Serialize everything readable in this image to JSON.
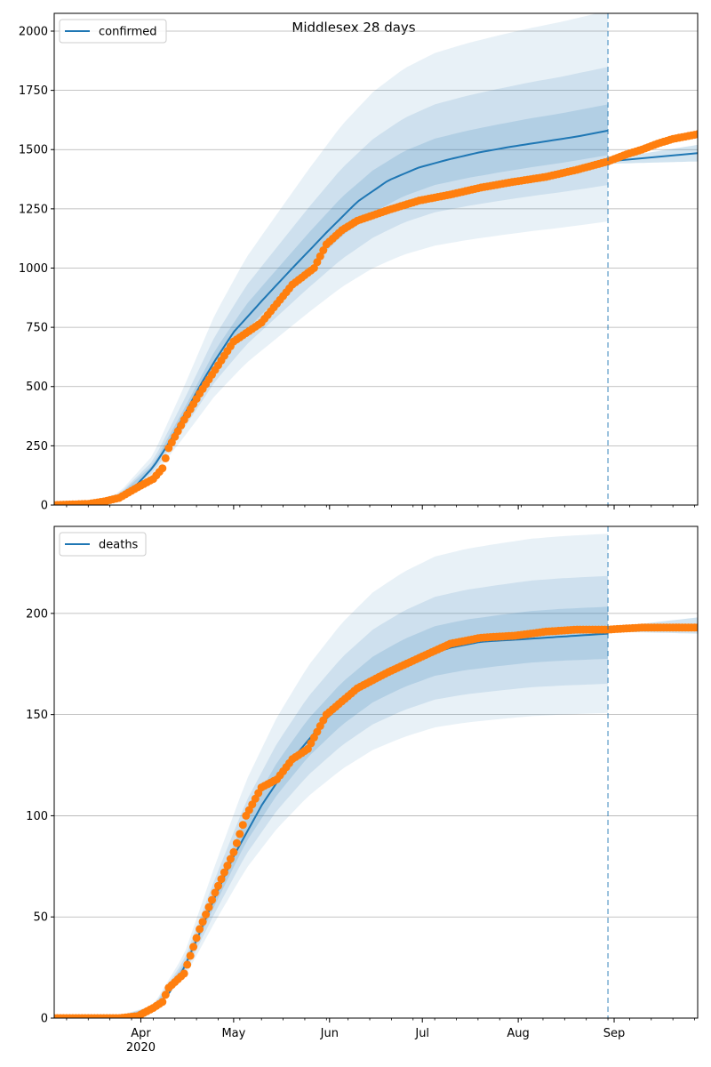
{
  "figure": {
    "title": "Middlesex 28 days",
    "month_labels": [
      "Apr",
      "May",
      "Jun",
      "Jul",
      "Aug",
      "Sep"
    ],
    "year_label": "2020",
    "forecast_start": "2020-08-30"
  },
  "colors": {
    "series": "#1f77b4",
    "observed": "#ff7f0e",
    "band": "#1f77b4",
    "grid": "#b0b0b0",
    "forecast_line": "#1f77b4"
  },
  "chart_data": [
    {
      "type": "line",
      "panel": "top",
      "legend": [
        "confirmed"
      ],
      "legend_position": "upper-left",
      "grid": "horizontal",
      "x_range": [
        "2020-03-04",
        "2020-09-28"
      ],
      "ylim": [
        0,
        2075
      ],
      "yticks": [
        0,
        250,
        500,
        750,
        1000,
        1250,
        1500,
        1750,
        2000
      ],
      "series": [
        {
          "name": "confirmed",
          "kind": "model-median",
          "x": [
            "2020-03-04",
            "2020-03-15",
            "2020-03-20",
            "2020-03-25",
            "2020-03-31",
            "2020-04-05",
            "2020-04-10",
            "2020-04-15",
            "2020-04-20",
            "2020-04-25",
            "2020-05-01",
            "2020-05-10",
            "2020-05-20",
            "2020-05-31",
            "2020-06-10",
            "2020-06-20",
            "2020-06-30",
            "2020-07-10",
            "2020-07-20",
            "2020-07-31",
            "2020-08-10",
            "2020-08-20",
            "2020-08-30"
          ],
          "y": [
            0,
            5,
            15,
            40,
            90,
            160,
            260,
            380,
            500,
            610,
            730,
            860,
            1000,
            1150,
            1280,
            1370,
            1425,
            1460,
            1490,
            1515,
            1535,
            1555,
            1580
          ]
        },
        {
          "name": "observed",
          "kind": "observed-points",
          "x": [
            "2020-03-04",
            "2020-03-15",
            "2020-03-20",
            "2020-03-25",
            "2020-03-31",
            "2020-04-05",
            "2020-04-08",
            "2020-04-10",
            "2020-04-15",
            "2020-04-20",
            "2020-04-25",
            "2020-05-01",
            "2020-05-10",
            "2020-05-20",
            "2020-05-27",
            "2020-05-31",
            "2020-06-05",
            "2020-06-10",
            "2020-06-20",
            "2020-06-30",
            "2020-07-10",
            "2020-07-20",
            "2020-07-31",
            "2020-08-10",
            "2020-08-20",
            "2020-08-30",
            "2020-09-05",
            "2020-09-10",
            "2020-09-15",
            "2020-09-20",
            "2020-09-28"
          ],
          "y": [
            0,
            5,
            15,
            30,
            75,
            110,
            155,
            240,
            360,
            470,
            570,
            690,
            770,
            930,
            1000,
            1100,
            1160,
            1200,
            1245,
            1285,
            1310,
            1340,
            1365,
            1385,
            1415,
            1450,
            1480,
            1500,
            1525,
            1545,
            1565
          ]
        },
        {
          "name": "forecast",
          "kind": "forecast-median",
          "x": [
            "2020-08-30",
            "2020-09-28"
          ],
          "y": [
            1450,
            1485
          ]
        }
      ],
      "bands": {
        "x": [
          "2020-03-04",
          "2020-03-15",
          "2020-03-25",
          "2020-04-05",
          "2020-04-15",
          "2020-04-25",
          "2020-05-05",
          "2020-05-15",
          "2020-05-25",
          "2020-06-05",
          "2020-06-15",
          "2020-06-25",
          "2020-07-05",
          "2020-07-15",
          "2020-07-25",
          "2020-08-05",
          "2020-08-15",
          "2020-08-30"
        ],
        "mid": [
          0,
          5,
          40,
          160,
          380,
          610,
          790,
          930,
          1070,
          1215,
          1320,
          1395,
          1445,
          1475,
          1500,
          1525,
          1545,
          1580
        ],
        "ratio_inner": 1.07,
        "ratio_middle": 1.17,
        "ratio_outer": 1.32,
        "forecast_x": [
          "2020-08-30",
          "2020-09-28"
        ],
        "forecast_mid": [
          1450,
          1485
        ],
        "forecast_halfwidth": [
          10,
          35
        ]
      }
    },
    {
      "type": "line",
      "panel": "bottom",
      "legend": [
        "deaths"
      ],
      "legend_position": "upper-left",
      "grid": "horizontal",
      "x_range": [
        "2020-03-04",
        "2020-09-28"
      ],
      "ylim": [
        0,
        243
      ],
      "yticks": [
        0,
        50,
        100,
        150,
        200
      ],
      "series": [
        {
          "name": "deaths",
          "kind": "model-median",
          "x": [
            "2020-03-04",
            "2020-03-25",
            "2020-03-31",
            "2020-04-05",
            "2020-04-10",
            "2020-04-15",
            "2020-04-20",
            "2020-04-25",
            "2020-05-01",
            "2020-05-10",
            "2020-05-20",
            "2020-05-31",
            "2020-06-10",
            "2020-06-20",
            "2020-06-30",
            "2020-07-10",
            "2020-07-20",
            "2020-07-31",
            "2020-08-10",
            "2020-08-20",
            "2020-08-30"
          ],
          "y": [
            0,
            1,
            2,
            5,
            12,
            25,
            42,
            60,
            80,
            105,
            128,
            148,
            162,
            172,
            178,
            183,
            186,
            187,
            188,
            189,
            190
          ]
        },
        {
          "name": "observed",
          "kind": "observed-points",
          "x": [
            "2020-03-04",
            "2020-03-25",
            "2020-03-31",
            "2020-04-05",
            "2020-04-08",
            "2020-04-10",
            "2020-04-15",
            "2020-04-20",
            "2020-04-25",
            "2020-05-01",
            "2020-05-05",
            "2020-05-10",
            "2020-05-15",
            "2020-05-20",
            "2020-05-25",
            "2020-05-31",
            "2020-06-10",
            "2020-06-20",
            "2020-06-30",
            "2020-07-10",
            "2020-07-20",
            "2020-07-31",
            "2020-08-10",
            "2020-08-20",
            "2020-08-30",
            "2020-09-10",
            "2020-09-20",
            "2020-09-28"
          ],
          "y": [
            0,
            0,
            1,
            5,
            8,
            15,
            22,
            44,
            62,
            82,
            100,
            114,
            118,
            128,
            133,
            150,
            163,
            171,
            178,
            185,
            188,
            189,
            191,
            192,
            192,
            193,
            193,
            193
          ]
        },
        {
          "name": "forecast",
          "kind": "forecast-median",
          "x": [
            "2020-08-30",
            "2020-09-28"
          ],
          "y": [
            192,
            194
          ]
        }
      ],
      "bands": {
        "x": [
          "2020-03-04",
          "2020-03-25",
          "2020-04-05",
          "2020-04-15",
          "2020-04-25",
          "2020-05-05",
          "2020-05-15",
          "2020-05-25",
          "2020-06-05",
          "2020-06-15",
          "2020-06-25",
          "2020-07-05",
          "2020-07-15",
          "2020-07-25",
          "2020-08-05",
          "2020-08-15",
          "2020-08-30"
        ],
        "mid": [
          0.5,
          1,
          5,
          25,
          60,
          93,
          118,
          138,
          155,
          167,
          175,
          181,
          184,
          186,
          188,
          189,
          190
        ],
        "ratio_inner": 1.07,
        "ratio_middle": 1.15,
        "ratio_outer": 1.26,
        "forecast_x": [
          "2020-08-30",
          "2020-09-28"
        ],
        "forecast_mid": [
          192,
          194
        ],
        "forecast_halfwidth": [
          1,
          4
        ]
      }
    }
  ]
}
